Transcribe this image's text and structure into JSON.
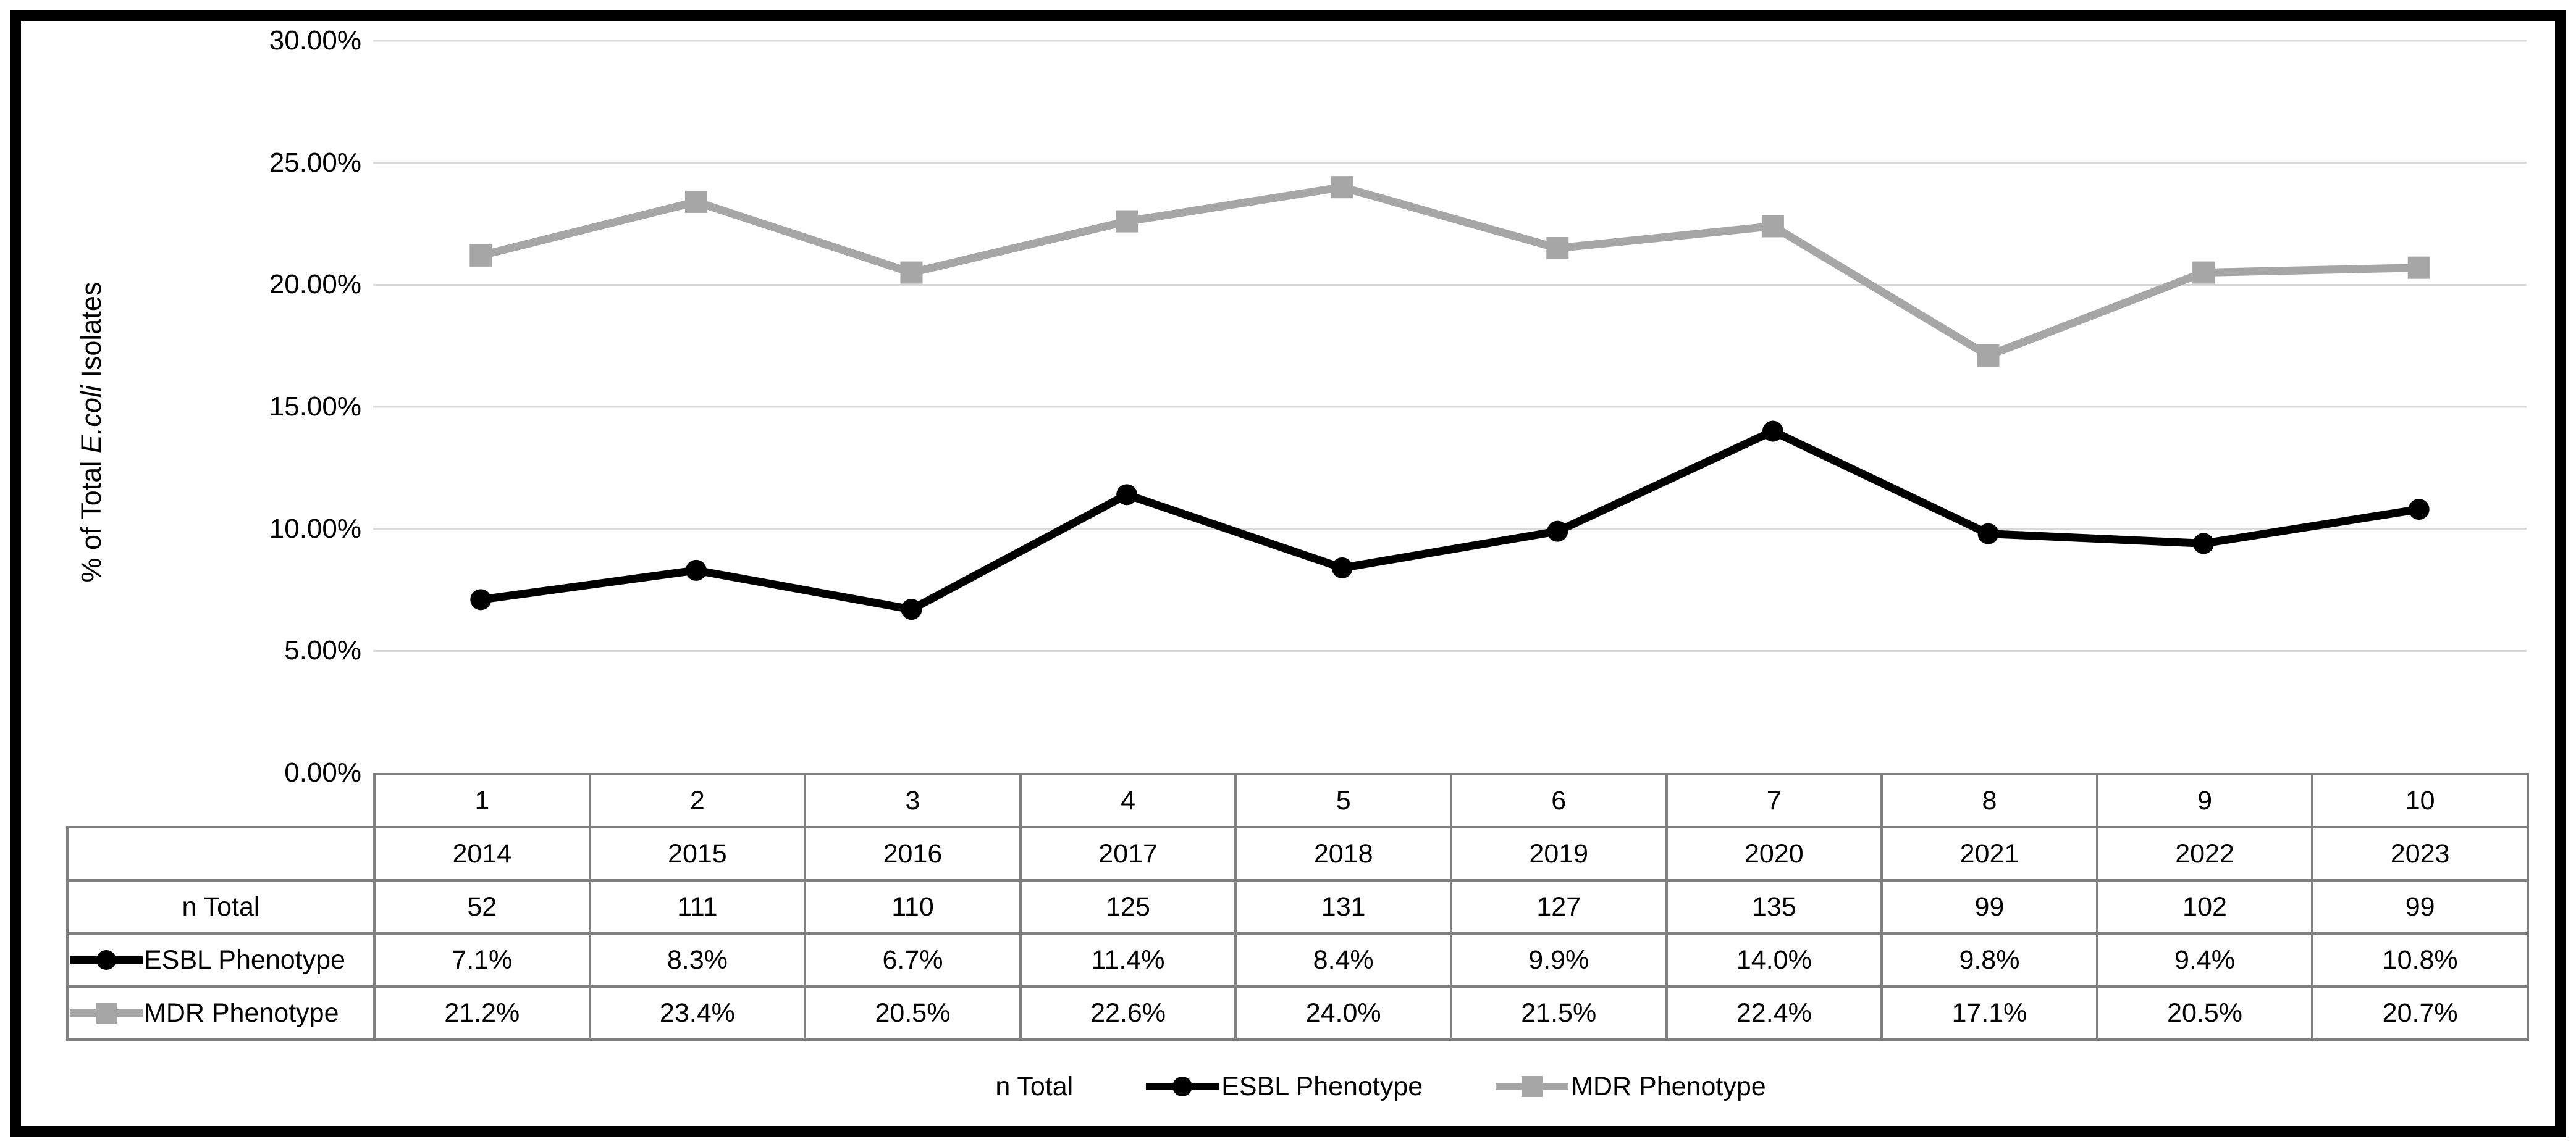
{
  "figure": {
    "background": "#ffffff",
    "frame_color": "#000000"
  },
  "y_axis": {
    "title_prefix": "% of Total ",
    "title_italic": "E.coli",
    "title_suffix": " Isolates",
    "tick_labels": [
      "30.00%",
      "25.00%",
      "20.00%",
      "15.00%",
      "10.00%",
      "5.00%",
      "0.00%"
    ]
  },
  "chart_data": {
    "type": "line",
    "categories_index": [
      "1",
      "2",
      "3",
      "4",
      "5",
      "6",
      "7",
      "8",
      "9",
      "10"
    ],
    "categories_year": [
      "2014",
      "2015",
      "2016",
      "2017",
      "2018",
      "2019",
      "2020",
      "2021",
      "2022",
      "2023"
    ],
    "n_total": [
      52,
      111,
      110,
      125,
      131,
      127,
      135,
      99,
      102,
      99
    ],
    "series": [
      {
        "name": "ESBL Phenotype",
        "marker": "circle",
        "color": "#000000",
        "values_percent": [
          7.1,
          8.3,
          6.7,
          11.4,
          8.4,
          9.9,
          14.0,
          9.8,
          9.4,
          10.8
        ]
      },
      {
        "name": "MDR Phenotype",
        "marker": "square",
        "color": "#a6a6a6",
        "values_percent": [
          21.2,
          23.4,
          20.5,
          22.6,
          24.0,
          21.5,
          22.4,
          17.1,
          20.5,
          20.7
        ]
      }
    ],
    "ylabel": "% of Total E.coli Isolates",
    "ylim": [
      0,
      30
    ],
    "ytick_step": 5,
    "grid": true,
    "legend_position": "bottom"
  },
  "table": {
    "row_headers": [
      "",
      "",
      "n Total",
      "ESBL Phenotype",
      "MDR Phenotype"
    ],
    "rows": [
      [
        "1",
        "2",
        "3",
        "4",
        "5",
        "6",
        "7",
        "8",
        "9",
        "10"
      ],
      [
        "2014",
        "2015",
        "2016",
        "2017",
        "2018",
        "2019",
        "2020",
        "2021",
        "2022",
        "2023"
      ],
      [
        "52",
        "111",
        "110",
        "125",
        "131",
        "127",
        "135",
        "99",
        "102",
        "99"
      ],
      [
        "7.1%",
        "8.3%",
        "6.7%",
        "11.4%",
        "8.4%",
        "9.9%",
        "14.0%",
        "9.8%",
        "9.4%",
        "10.8%"
      ],
      [
        "21.2%",
        "23.4%",
        "20.5%",
        "22.6%",
        "24.0%",
        "21.5%",
        "22.4%",
        "17.1%",
        "20.5%",
        "20.7%"
      ]
    ]
  },
  "legend": {
    "items": [
      {
        "label": "n Total",
        "marker": "none",
        "color": "#000000"
      },
      {
        "label": "ESBL Phenotype",
        "marker": "circle",
        "color": "#000000"
      },
      {
        "label": "MDR Phenotype",
        "marker": "square",
        "color": "#a6a6a6"
      }
    ]
  },
  "colors": {
    "gridline": "#d9d9d9",
    "table_border": "#7f7f7f",
    "esbl_series": "#000000",
    "mdr_series": "#a6a6a6"
  }
}
